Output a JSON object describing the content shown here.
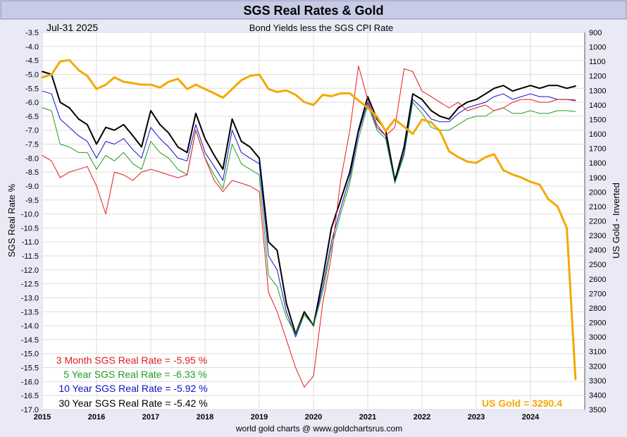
{
  "chart_data": {
    "type": "line",
    "title": "SGS Real Rates & Gold",
    "date_label": "Jul-31  2025",
    "subtitle": "Bond Yields less the SGS CPI Rate",
    "ylabel_left": "SGS Real Rate %",
    "ylabel_right": "US Gold - Inverted",
    "footer": "world gold charts @ www.goldchartsrus.com",
    "x_ticks": [
      "2015",
      "2016",
      "2017",
      "2018",
      "2019",
      "2020",
      "2021",
      "2022",
      "2023",
      "2024"
    ],
    "x_range": [
      2015.0,
      2025.0
    ],
    "left_axis": {
      "range": [
        -17.0,
        -3.5
      ],
      "ticks": [
        "-3.5",
        "-4.0",
        "-4.5",
        "-5.0",
        "-5.5",
        "-6.0",
        "-6.5",
        "-7.0",
        "-7.5",
        "-8.0",
        "-8.5",
        "-9.0",
        "-9.5",
        "-10.0",
        "-10.5",
        "-11.0",
        "-11.5",
        "-12.0",
        "-12.5",
        "-13.0",
        "-13.5",
        "-14.0",
        "-14.5",
        "-15.0",
        "-15.5",
        "-16.0",
        "-16.5",
        "-17.0"
      ]
    },
    "right_axis": {
      "range": [
        900,
        3500
      ],
      "inverted": true,
      "ticks": [
        "900",
        "1000",
        "1100",
        "1200",
        "1300",
        "1400",
        "1500",
        "1600",
        "1700",
        "1800",
        "1900",
        "2000",
        "2100",
        "2200",
        "2300",
        "2400",
        "2500",
        "2600",
        "2700",
        "2800",
        "2900",
        "3000",
        "3100",
        "3200",
        "3300",
        "3400",
        "3500"
      ]
    },
    "grid": true,
    "colors": {
      "background": "#ffffff",
      "frame": "#eaeaf6",
      "title_band": "#c7cbe6",
      "grid": "#dddddd",
      "3m": "#e41a1c",
      "5y": "#1f9c1f",
      "10y": "#1010cc",
      "30y": "#000000",
      "gold": "#f5a800"
    },
    "legend": [
      {
        "label": "3 Month SGS Real Rate = -5.95 %",
        "color": "#e41a1c"
      },
      {
        "label": "5 Year SGS Real Rate = -6.33 %",
        "color": "#1f9c1f"
      },
      {
        "label": "10 Year SGS Real Rate = -5.92 %",
        "color": "#1010cc"
      },
      {
        "label": "30 Year SGS Real Rate = -5.42 %",
        "color": "#000000"
      }
    ],
    "gold_label": "US Gold = 3290.4",
    "series": [
      {
        "name": "30 Year SGS Real Rate",
        "key": "30y",
        "axis": "left",
        "x": [
          2015.0,
          2015.17,
          2015.33,
          2015.5,
          2015.67,
          2015.83,
          2016.0,
          2016.17,
          2016.33,
          2016.5,
          2016.67,
          2016.83,
          2017.0,
          2017.17,
          2017.33,
          2017.5,
          2017.67,
          2017.83,
          2018.0,
          2018.17,
          2018.33,
          2018.5,
          2018.67,
          2018.83,
          2019.0,
          2019.17,
          2019.33,
          2019.5,
          2019.67,
          2019.83,
          2020.0,
          2020.17,
          2020.33,
          2020.5,
          2020.67,
          2020.83,
          2021.0,
          2021.17,
          2021.33,
          2021.5,
          2021.67,
          2021.83,
          2022.0,
          2022.17,
          2022.33,
          2022.5,
          2022.67,
          2022.83,
          2023.0,
          2023.17,
          2023.33,
          2023.5,
          2023.67,
          2023.83,
          2024.0,
          2024.17,
          2024.33,
          2024.5,
          2024.67,
          2024.83
        ],
        "values": [
          -4.9,
          -5.0,
          -6.0,
          -6.2,
          -6.6,
          -6.8,
          -7.5,
          -6.9,
          -7.0,
          -6.8,
          -7.2,
          -7.6,
          -6.3,
          -6.8,
          -7.1,
          -7.6,
          -7.8,
          -6.4,
          -7.3,
          -7.9,
          -8.4,
          -6.6,
          -7.4,
          -7.6,
          -8.0,
          -11.0,
          -11.3,
          -13.2,
          -14.3,
          -13.5,
          -14.0,
          -12.3,
          -10.5,
          -9.5,
          -8.5,
          -7.0,
          -5.8,
          -6.6,
          -7.0,
          -8.8,
          -7.6,
          -5.7,
          -5.9,
          -6.3,
          -6.5,
          -6.6,
          -6.2,
          -6.0,
          -5.9,
          -5.7,
          -5.5,
          -5.4,
          -5.6,
          -5.5,
          -5.4,
          -5.5,
          -5.4,
          -5.4,
          -5.5,
          -5.42
        ]
      },
      {
        "name": "10 Year SGS Real Rate",
        "key": "10y",
        "axis": "left",
        "x": [
          2015.0,
          2015.17,
          2015.33,
          2015.5,
          2015.67,
          2015.83,
          2016.0,
          2016.17,
          2016.33,
          2016.5,
          2016.67,
          2016.83,
          2017.0,
          2017.17,
          2017.33,
          2017.5,
          2017.67,
          2017.83,
          2018.0,
          2018.17,
          2018.33,
          2018.5,
          2018.67,
          2018.83,
          2019.0,
          2019.17,
          2019.33,
          2019.5,
          2019.67,
          2019.83,
          2020.0,
          2020.17,
          2020.33,
          2020.5,
          2020.67,
          2020.83,
          2021.0,
          2021.17,
          2021.33,
          2021.5,
          2021.67,
          2021.83,
          2022.0,
          2022.17,
          2022.33,
          2022.5,
          2022.67,
          2022.83,
          2023.0,
          2023.17,
          2023.33,
          2023.5,
          2023.67,
          2023.83,
          2024.0,
          2024.17,
          2024.33,
          2024.5,
          2024.67,
          2024.83
        ],
        "values": [
          -5.6,
          -5.7,
          -6.6,
          -6.9,
          -7.2,
          -7.4,
          -8.0,
          -7.4,
          -7.5,
          -7.3,
          -7.7,
          -8.0,
          -6.9,
          -7.3,
          -7.6,
          -8.0,
          -8.1,
          -6.8,
          -7.8,
          -8.3,
          -8.8,
          -7.0,
          -7.8,
          -8.0,
          -8.2,
          -11.5,
          -12.0,
          -13.5,
          -14.4,
          -13.6,
          -14.0,
          -12.6,
          -11.0,
          -9.8,
          -8.7,
          -7.1,
          -6.0,
          -6.9,
          -7.2,
          -8.9,
          -7.8,
          -5.9,
          -6.2,
          -6.6,
          -6.7,
          -6.7,
          -6.4,
          -6.2,
          -6.1,
          -6.0,
          -5.8,
          -5.7,
          -5.9,
          -5.8,
          -5.7,
          -5.8,
          -5.8,
          -5.9,
          -5.9,
          -5.92
        ]
      },
      {
        "name": "5 Year SGS Real Rate",
        "key": "5y",
        "axis": "left",
        "x": [
          2015.0,
          2015.17,
          2015.33,
          2015.5,
          2015.67,
          2015.83,
          2016.0,
          2016.17,
          2016.33,
          2016.5,
          2016.67,
          2016.83,
          2017.0,
          2017.17,
          2017.33,
          2017.5,
          2017.67,
          2017.83,
          2018.0,
          2018.17,
          2018.33,
          2018.5,
          2018.67,
          2018.83,
          2019.0,
          2019.17,
          2019.33,
          2019.5,
          2019.67,
          2019.83,
          2020.0,
          2020.17,
          2020.33,
          2020.5,
          2020.67,
          2020.83,
          2021.0,
          2021.17,
          2021.33,
          2021.5,
          2021.67,
          2021.83,
          2022.0,
          2022.17,
          2022.33,
          2022.5,
          2022.67,
          2022.83,
          2023.0,
          2023.17,
          2023.33,
          2023.5,
          2023.67,
          2023.83,
          2024.0,
          2024.17,
          2024.33,
          2024.5,
          2024.67,
          2024.83
        ],
        "values": [
          -6.2,
          -6.3,
          -7.5,
          -7.6,
          -7.8,
          -7.8,
          -8.4,
          -7.9,
          -8.1,
          -7.8,
          -8.2,
          -8.4,
          -7.4,
          -7.8,
          -8.0,
          -8.4,
          -8.6,
          -7.0,
          -8.0,
          -8.6,
          -9.1,
          -7.5,
          -8.2,
          -8.4,
          -8.6,
          -12.2,
          -12.6,
          -13.7,
          -14.3,
          -13.6,
          -14.0,
          -12.8,
          -11.2,
          -10.0,
          -8.9,
          -7.3,
          -6.1,
          -7.0,
          -7.3,
          -8.9,
          -7.9,
          -6.0,
          -6.4,
          -6.9,
          -7.0,
          -7.0,
          -6.8,
          -6.6,
          -6.5,
          -6.5,
          -6.3,
          -6.2,
          -6.4,
          -6.4,
          -6.3,
          -6.4,
          -6.4,
          -6.3,
          -6.3,
          -6.33
        ]
      },
      {
        "name": "3 Month SGS Real Rate",
        "key": "3m",
        "axis": "left",
        "x": [
          2015.0,
          2015.17,
          2015.33,
          2015.5,
          2015.67,
          2015.83,
          2016.0,
          2016.17,
          2016.33,
          2016.5,
          2016.67,
          2016.83,
          2017.0,
          2017.17,
          2017.33,
          2017.5,
          2017.67,
          2017.83,
          2018.0,
          2018.17,
          2018.33,
          2018.5,
          2018.67,
          2018.83,
          2019.0,
          2019.17,
          2019.33,
          2019.5,
          2019.67,
          2019.83,
          2020.0,
          2020.17,
          2020.33,
          2020.5,
          2020.67,
          2020.83,
          2021.0,
          2021.17,
          2021.33,
          2021.5,
          2021.67,
          2021.83,
          2022.0,
          2022.17,
          2022.33,
          2022.5,
          2022.67,
          2022.83,
          2023.0,
          2023.17,
          2023.33,
          2023.5,
          2023.67,
          2023.83,
          2024.0,
          2024.17,
          2024.33,
          2024.5,
          2024.67,
          2024.83
        ],
        "values": [
          -7.9,
          -8.1,
          -8.7,
          -8.5,
          -8.4,
          -8.3,
          -9.0,
          -10.0,
          -8.5,
          -8.6,
          -8.8,
          -8.5,
          -8.4,
          -8.5,
          -8.6,
          -8.7,
          -8.6,
          -7.0,
          -8.0,
          -8.8,
          -9.2,
          -8.8,
          -8.9,
          -9.0,
          -9.2,
          -12.8,
          -13.5,
          -14.5,
          -15.5,
          -16.2,
          -15.8,
          -13.2,
          -11.5,
          -8.8,
          -7.0,
          -4.7,
          -5.9,
          -6.8,
          -7.2,
          -6.9,
          -4.8,
          -4.9,
          -5.6,
          -5.8,
          -6.0,
          -6.2,
          -6.0,
          -6.3,
          -6.2,
          -6.1,
          -6.3,
          -6.2,
          -6.0,
          -5.9,
          -5.9,
          -6.0,
          -6.0,
          -5.9,
          -5.9,
          -5.95
        ]
      },
      {
        "name": "US Gold",
        "key": "gold",
        "axis": "right",
        "x": [
          2015.0,
          2015.17,
          2015.33,
          2015.5,
          2015.67,
          2015.83,
          2016.0,
          2016.17,
          2016.33,
          2016.5,
          2016.67,
          2016.83,
          2017.0,
          2017.17,
          2017.33,
          2017.5,
          2017.67,
          2017.83,
          2018.0,
          2018.17,
          2018.33,
          2018.5,
          2018.67,
          2018.83,
          2019.0,
          2019.17,
          2019.33,
          2019.5,
          2019.67,
          2019.83,
          2020.0,
          2020.17,
          2020.33,
          2020.5,
          2020.67,
          2020.83,
          2021.0,
          2021.17,
          2021.33,
          2021.5,
          2021.67,
          2021.83,
          2022.0,
          2022.17,
          2022.33,
          2022.5,
          2022.67,
          2022.83,
          2023.0,
          2023.17,
          2023.33,
          2023.5,
          2023.67,
          2023.83,
          2024.0,
          2024.17,
          2024.33,
          2024.5,
          2024.67,
          2024.83
        ],
        "values": [
          1210,
          1190,
          1100,
          1090,
          1160,
          1200,
          1290,
          1260,
          1210,
          1240,
          1250,
          1260,
          1260,
          1280,
          1240,
          1220,
          1290,
          1260,
          1290,
          1320,
          1350,
          1290,
          1230,
          1200,
          1190,
          1290,
          1310,
          1300,
          1330,
          1380,
          1400,
          1330,
          1340,
          1320,
          1320,
          1370,
          1420,
          1480,
          1580,
          1500,
          1550,
          1600,
          1500,
          1520,
          1580,
          1720,
          1760,
          1790,
          1800,
          1760,
          1740,
          1850,
          1880,
          1900,
          1930,
          1950,
          2050,
          2100,
          2250,
          3290.4
        ]
      }
    ]
  }
}
